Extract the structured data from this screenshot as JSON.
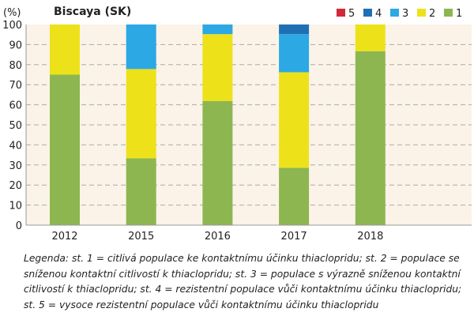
{
  "chart_data": {
    "type": "bar",
    "stacked": true,
    "title": "Biscaya (SK)",
    "ylabel": "(%)",
    "ylim": [
      0,
      100
    ],
    "yticks": [
      0,
      10,
      20,
      30,
      40,
      50,
      60,
      70,
      80,
      90,
      100
    ],
    "grid": true,
    "legend_position": "top-right",
    "categories": [
      "2012",
      "2015",
      "2016",
      "2017",
      "2018"
    ],
    "series": [
      {
        "name": "1",
        "color": "#8db650",
        "values": [
          75,
          33.3,
          61.9,
          28.6,
          86.7
        ]
      },
      {
        "name": "2",
        "color": "#ede21a",
        "values": [
          25,
          44.5,
          33.3,
          47.6,
          13.3
        ]
      },
      {
        "name": "3",
        "color": "#2ca8e4",
        "values": [
          0,
          22.2,
          4.8,
          19.0,
          0
        ]
      },
      {
        "name": "4",
        "color": "#1f6fb5",
        "values": [
          0,
          0,
          0,
          4.8,
          0
        ]
      },
      {
        "name": "5",
        "color": "#d2283a",
        "values": [
          0,
          0,
          0,
          0,
          0
        ]
      }
    ],
    "legend_order": [
      "5",
      "4",
      "3",
      "2",
      "1"
    ],
    "background": "#fbf3e8"
  },
  "note": "Legenda: st. 1 = citlivá populace ke kontaktnímu účinku thiaclopridu; st. 2 = populace se sníženou kontaktní citlivostí k thiaclopridu; st. 3 = populace s výrazně sníženou kontaktní citlivostí k thiaclopridu; st. 4 = rezistentní populace vůči kontaktnímu účinku thiaclopridu; st. 5 = vysoce rezistentní populace vůči kontaktnímu účinku thiaclopridu"
}
